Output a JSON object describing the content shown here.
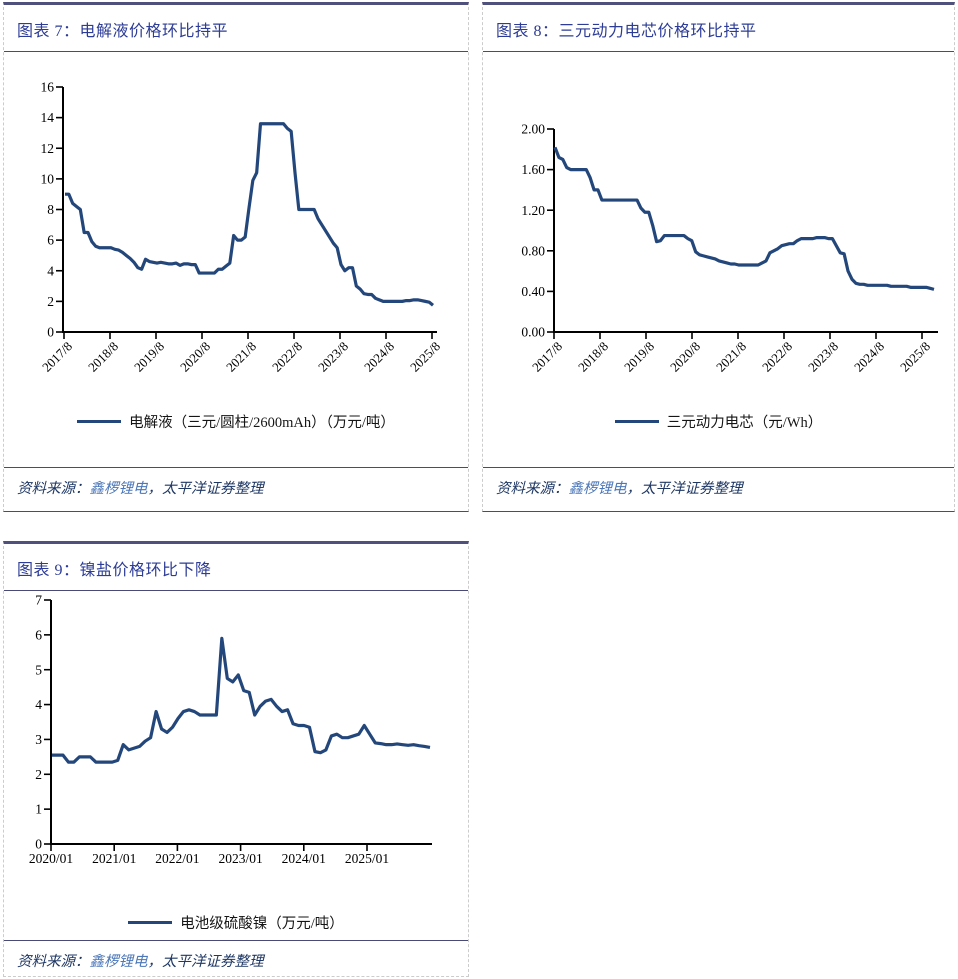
{
  "panels": [
    {
      "title": "图表 7：电解液价格环比持平"
    },
    {
      "title": "图表 8：三元动力电芯价格环比持平"
    },
    {
      "title": "图表 9：镍盐价格环比下降"
    }
  ],
  "source": {
    "prefix": "资料来源：",
    "org": "鑫椤锂电",
    "rest": "，太平洋证券整理"
  },
  "colors": {
    "series_line": "#24477B",
    "title_text": "#2D3C96",
    "link_blue": "#4C77B8",
    "source_text": "#1F3864"
  },
  "chart_data": [
    {
      "type": "line",
      "title": "图表 7：电解液价格环比持平",
      "legend": "电解液（三元/圆柱/2600mAh）（万元/吨）",
      "unit": "万元/吨",
      "x_start": "2017/8",
      "x_frequency": "monthly",
      "x_tick_labels": [
        "2017/8",
        "2018/8",
        "2019/8",
        "2020/8",
        "2021/8",
        "2022/8",
        "2023/8",
        "2024/8",
        "2025/8"
      ],
      "ylim": [
        0,
        16
      ],
      "y_ticks": [
        0,
        2,
        4,
        6,
        8,
        10,
        12,
        14,
        16
      ],
      "y_tick_labels": [
        "0",
        "2",
        "4",
        "6",
        "8",
        "10",
        "12",
        "14",
        "16"
      ],
      "grid": false,
      "legend_position": "bottom",
      "values": [
        9.0,
        9.0,
        8.4,
        8.2,
        8.0,
        6.5,
        6.5,
        5.9,
        5.6,
        5.5,
        5.5,
        5.5,
        5.5,
        5.4,
        5.35,
        5.2,
        5.0,
        4.8,
        4.55,
        4.2,
        4.1,
        4.75,
        4.6,
        4.55,
        4.5,
        4.55,
        4.5,
        4.45,
        4.45,
        4.5,
        4.35,
        4.45,
        4.45,
        4.4,
        4.4,
        3.85,
        3.85,
        3.85,
        3.85,
        3.85,
        4.1,
        4.1,
        4.3,
        4.5,
        6.3,
        6.0,
        6.0,
        6.2,
        8.1,
        9.9,
        10.4,
        13.6,
        13.6,
        13.6,
        13.6,
        13.6,
        13.6,
        13.6,
        13.3,
        13.1,
        10.4,
        8.0,
        8.0,
        8.0,
        8.0,
        8.0,
        7.4,
        7.0,
        6.6,
        6.2,
        5.8,
        5.5,
        4.4,
        4.0,
        4.2,
        4.2,
        3.0,
        2.8,
        2.5,
        2.45,
        2.45,
        2.2,
        2.1,
        2.0,
        2.0,
        2.0,
        2.0,
        2.0,
        2.0,
        2.05,
        2.05,
        2.1,
        2.1,
        2.05,
        2.0,
        1.95,
        1.75
      ]
    },
    {
      "type": "line",
      "title": "图表 8：三元动力电芯价格环比持平",
      "legend": "三元动力电芯（元/Wh）",
      "unit": "元/Wh",
      "x_start": "2017/8",
      "x_frequency": "monthly",
      "x_tick_labels": [
        "2017/8",
        "2018/8",
        "2019/8",
        "2020/8",
        "2021/8",
        "2022/8",
        "2023/8",
        "2024/8",
        "2025/8"
      ],
      "ylim": [
        0,
        2
      ],
      "y_ticks": [
        0,
        0.4,
        0.8,
        1.2,
        1.6,
        2.0
      ],
      "y_tick_labels": [
        "0.00",
        "0.40",
        "0.80",
        "1.20",
        "1.60",
        "2.00"
      ],
      "grid": false,
      "legend_position": "bottom",
      "values": [
        1.82,
        1.72,
        1.7,
        1.62,
        1.6,
        1.6,
        1.6,
        1.6,
        1.6,
        1.52,
        1.4,
        1.4,
        1.3,
        1.3,
        1.3,
        1.3,
        1.3,
        1.3,
        1.3,
        1.3,
        1.3,
        1.3,
        1.22,
        1.18,
        1.18,
        1.05,
        0.89,
        0.9,
        0.95,
        0.95,
        0.95,
        0.95,
        0.95,
        0.95,
        0.92,
        0.9,
        0.79,
        0.76,
        0.75,
        0.74,
        0.73,
        0.72,
        0.7,
        0.69,
        0.68,
        0.67,
        0.67,
        0.66,
        0.66,
        0.66,
        0.66,
        0.66,
        0.66,
        0.68,
        0.7,
        0.78,
        0.8,
        0.82,
        0.85,
        0.86,
        0.87,
        0.87,
        0.9,
        0.92,
        0.92,
        0.92,
        0.92,
        0.93,
        0.93,
        0.93,
        0.92,
        0.92,
        0.85,
        0.78,
        0.77,
        0.6,
        0.52,
        0.48,
        0.47,
        0.47,
        0.46,
        0.46,
        0.46,
        0.46,
        0.46,
        0.46,
        0.45,
        0.45,
        0.45,
        0.45,
        0.45,
        0.44,
        0.44,
        0.44,
        0.44,
        0.44,
        0.43,
        0.42
      ]
    },
    {
      "type": "line",
      "title": "图表 9：镍盐价格环比下降",
      "legend": "电池级硫酸镍（万元/吨）",
      "unit": "万元/吨",
      "x_start": "2020/01",
      "x_frequency": "monthly",
      "x_tick_labels": [
        "2020/01",
        "2021/01",
        "2022/01",
        "2023/01",
        "2024/01",
        "2025/01"
      ],
      "ylim": [
        0,
        7
      ],
      "y_ticks": [
        0,
        1,
        2,
        3,
        4,
        5,
        6,
        7
      ],
      "y_tick_labels": [
        "0",
        "1",
        "2",
        "3",
        "4",
        "5",
        "6",
        "7"
      ],
      "grid": false,
      "legend_position": "bottom",
      "values": [
        2.55,
        2.55,
        2.55,
        2.35,
        2.35,
        2.5,
        2.5,
        2.5,
        2.35,
        2.35,
        2.35,
        2.35,
        2.4,
        2.85,
        2.7,
        2.75,
        2.8,
        2.95,
        3.05,
        3.8,
        3.3,
        3.2,
        3.35,
        3.6,
        3.8,
        3.85,
        3.8,
        3.7,
        3.7,
        3.7,
        3.7,
        5.9,
        4.75,
        4.65,
        4.85,
        4.4,
        4.35,
        3.7,
        3.95,
        4.1,
        4.15,
        3.95,
        3.8,
        3.85,
        3.45,
        3.4,
        3.4,
        3.35,
        2.65,
        2.62,
        2.7,
        3.1,
        3.15,
        3.05,
        3.05,
        3.1,
        3.15,
        3.4,
        3.15,
        2.9,
        2.88,
        2.85,
        2.85,
        2.87,
        2.85,
        2.83,
        2.85,
        2.82,
        2.8,
        2.77
      ]
    }
  ]
}
